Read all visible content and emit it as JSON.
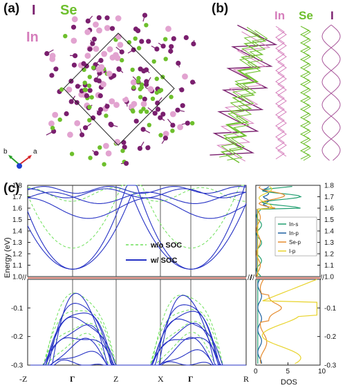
{
  "panels": {
    "a": {
      "label": "(a)",
      "elements": [
        {
          "symbol": "I",
          "color": "#7a1f6e"
        },
        {
          "symbol": "Se",
          "color": "#6dbf2c"
        },
        {
          "symbol": "In",
          "color": "#d57dbb"
        }
      ],
      "axes": [
        {
          "name": "b",
          "color": "#2aa12a"
        },
        {
          "name": "a",
          "color": "#d6272a"
        }
      ]
    },
    "b": {
      "label": "(b)",
      "elements": [
        {
          "symbol": "In",
          "color": "#d57dbb"
        },
        {
          "symbol": "Se",
          "color": "#6dbf2c"
        },
        {
          "symbol": "I",
          "color": "#7a1f6e"
        }
      ]
    },
    "c": {
      "label": "(c)",
      "legend": [
        {
          "label": "w/o SOC",
          "style": "dashed",
          "color": "#6ee05a"
        },
        {
          "label": "w/ SOC",
          "style": "solid",
          "color": "#2430c4"
        }
      ],
      "dos_legend": [
        {
          "label": "In-s",
          "color": "#1f9e6f"
        },
        {
          "label": "In-p",
          "color": "#1a5fa0"
        },
        {
          "label": "Se-p",
          "color": "#e58a2c"
        },
        {
          "label": "I-p",
          "color": "#e8d32a"
        }
      ]
    }
  },
  "chart_data": {
    "type": "line",
    "ylabel": "Energy (eV)",
    "xlabel_dos": "DOS",
    "kpoints": [
      "-Z",
      "Γ",
      "Z",
      "X",
      "Γ",
      "R"
    ],
    "upper_y_ticks": [
      "1.8",
      "1.7",
      "1.6",
      "1.5",
      "1.4",
      "1.3",
      "1.2",
      "1.1",
      "1.0"
    ],
    "lower_y_ticks": [
      "-0.1",
      "-0.2",
      "-0.3"
    ],
    "dos_x_ticks": [
      "0",
      "5",
      "10"
    ],
    "upper_ylim": [
      1.0,
      1.8
    ],
    "lower_ylim": [
      -0.3,
      0.0
    ],
    "dos_xlim": [
      0,
      10
    ]
  }
}
